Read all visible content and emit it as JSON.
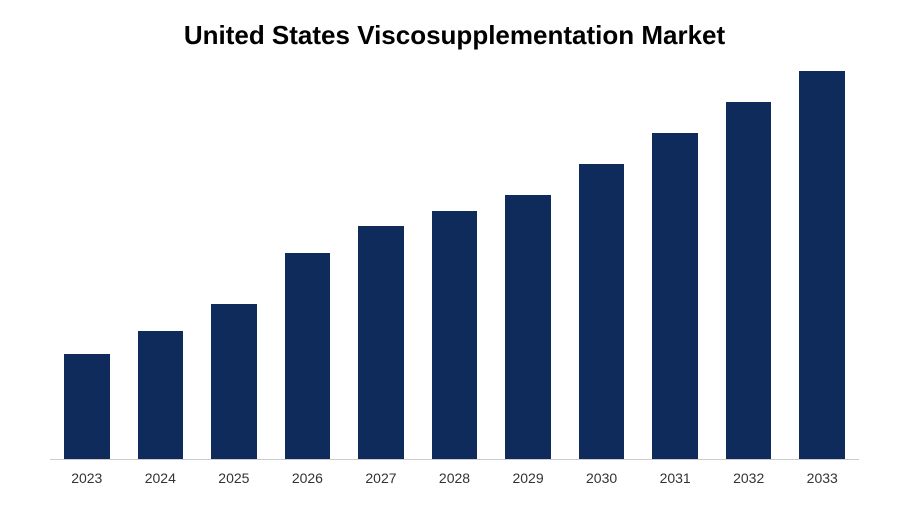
{
  "chart": {
    "type": "bar",
    "title": "United States Viscosupplementation Market",
    "title_fontsize": 26,
    "title_fontweight": "bold",
    "title_color": "#000000",
    "categories": [
      "2023",
      "2024",
      "2025",
      "2026",
      "2027",
      "2028",
      "2029",
      "2030",
      "2031",
      "2032",
      "2033"
    ],
    "values": [
      27,
      33,
      40,
      53,
      60,
      64,
      68,
      76,
      84,
      92,
      100
    ],
    "ylim": [
      0,
      100
    ],
    "bar_color": "#0f2b5c",
    "background_color": "#ffffff",
    "axis_line_color": "#cccccc",
    "label_fontsize": 14,
    "label_color": "#333333",
    "bar_width": 0.62
  }
}
